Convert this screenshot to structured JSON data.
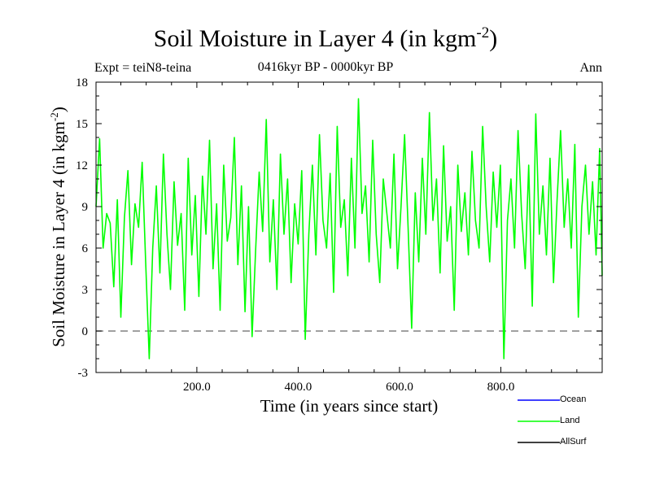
{
  "chart_data": {
    "type": "line",
    "title": "Soil Moisture in Layer 4 (in kgm",
    "title_sup": "-2",
    "title_close": ")",
    "subtitle": "0416kyr BP - 0000kyr BP",
    "experiment": "Expt = teiN8-teina",
    "season": "Ann",
    "xlabel": "Time (in years since start)",
    "ylabel": "Soil Moisture in Layer 4 (in kgm",
    "ylabel_sup": "-2",
    "ylabel_close": ")",
    "xlim": [
      1,
      1000
    ],
    "ylim": [
      -3,
      18
    ],
    "x_ticks": [
      200,
      400,
      600,
      800
    ],
    "x_tick_labels": [
      "200.0",
      "400.0",
      "600.0",
      "800.0"
    ],
    "y_ticks": [
      -3,
      0,
      3,
      6,
      9,
      12,
      15,
      18
    ],
    "y_tick_labels": [
      "-3",
      "0",
      "3",
      "6",
      "9",
      "12",
      "15",
      "18"
    ],
    "reference_line": 0,
    "legend": [
      {
        "name": "Ocean",
        "color": "#0000ff"
      },
      {
        "name": "Land",
        "color": "#00ff00"
      },
      {
        "name": "AllSurf",
        "color": "#000000"
      }
    ],
    "series": [
      {
        "name": "Land",
        "color": "#00ff00",
        "x": [
          1,
          8,
          15,
          22,
          29,
          36,
          43,
          50,
          57,
          64,
          71,
          78,
          85,
          92,
          99,
          106,
          113,
          120,
          127,
          134,
          141,
          148,
          155,
          162,
          169,
          176,
          183,
          190,
          197,
          204,
          211,
          218,
          225,
          232,
          239,
          246,
          253,
          260,
          267,
          274,
          281,
          288,
          295,
          302,
          309,
          316,
          323,
          330,
          337,
          344,
          351,
          358,
          365,
          372,
          379,
          386,
          393,
          400,
          407,
          414,
          421,
          428,
          435,
          442,
          449,
          456,
          463,
          470,
          477,
          484,
          491,
          498,
          505,
          512,
          519,
          526,
          533,
          540,
          547,
          554,
          561,
          568,
          575,
          582,
          589,
          596,
          603,
          610,
          617,
          624,
          631,
          638,
          645,
          652,
          659,
          666,
          673,
          680,
          687,
          694,
          701,
          708,
          715,
          722,
          729,
          736,
          743,
          750,
          757,
          764,
          771,
          778,
          785,
          792,
          799,
          806,
          813,
          820,
          827,
          834,
          841,
          848,
          855,
          862,
          869,
          876,
          883,
          890,
          897,
          904,
          911,
          918,
          925,
          932,
          939,
          946,
          953,
          960,
          967,
          974,
          981,
          988,
          995,
          1000
        ],
        "values": [
          9.0,
          13.9,
          6.0,
          8.5,
          7.8,
          3.2,
          9.5,
          1.0,
          8.2,
          11.6,
          4.8,
          9.2,
          7.5,
          12.2,
          5.0,
          -2.0,
          6.0,
          10.5,
          4.2,
          12.8,
          7.0,
          3.0,
          10.8,
          6.2,
          8.5,
          1.5,
          12.5,
          5.5,
          9.8,
          2.5,
          11.2,
          7.0,
          13.8,
          4.5,
          9.2,
          1.5,
          12.0,
          6.5,
          8.2,
          14.0,
          4.8,
          10.5,
          1.4,
          9.0,
          -0.4,
          5.8,
          11.5,
          7.2,
          15.3,
          5.0,
          9.5,
          3.0,
          12.8,
          7.0,
          11.0,
          3.5,
          9.2,
          6.3,
          11.6,
          -0.6,
          7.0,
          12.0,
          5.5,
          14.2,
          8.0,
          6.0,
          11.4,
          2.8,
          14.8,
          7.5,
          9.5,
          4.0,
          12.5,
          6.0,
          16.8,
          8.5,
          10.5,
          5.0,
          13.8,
          7.0,
          3.5,
          11.0,
          8.5,
          6.0,
          12.8,
          4.5,
          9.0,
          14.2,
          7.5,
          0.2,
          10.0,
          5.0,
          12.5,
          7.0,
          15.8,
          8.0,
          11.0,
          4.2,
          13.4,
          6.5,
          9.0,
          1.5,
          12.0,
          7.2,
          10.0,
          5.5,
          13.0,
          8.0,
          6.0,
          14.8,
          9.0,
          5.0,
          11.5,
          7.5,
          12.0,
          -2.0,
          8.0,
          11.0,
          6.0,
          14.5,
          8.5,
          4.5,
          12.0,
          1.8,
          15.7,
          7.0,
          10.5,
          5.5,
          12.5,
          3.5,
          9.5,
          14.5,
          7.5,
          11.0,
          6.0,
          13.5,
          1.0,
          9.0,
          12.0,
          7.0,
          10.8,
          5.5,
          13.2,
          4.0
        ]
      }
    ]
  }
}
